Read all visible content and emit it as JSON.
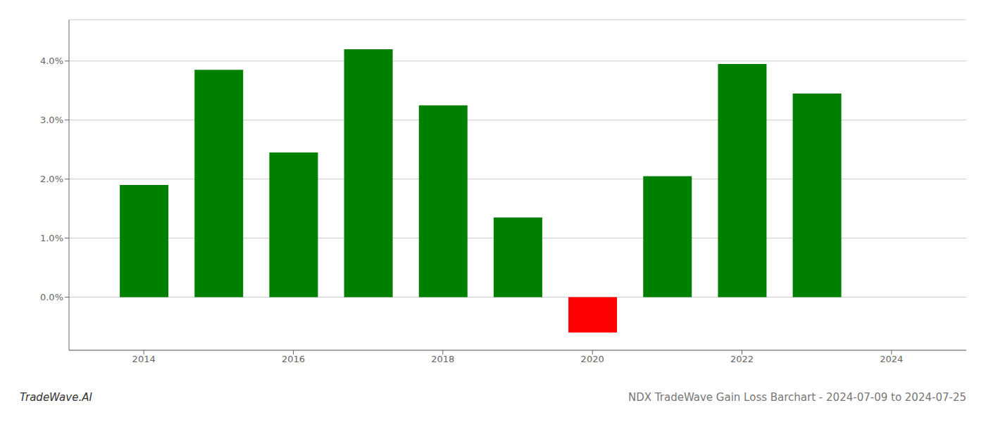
{
  "chart_data": {
    "type": "bar",
    "title": "NDX TradeWave Gain Loss Barchart - 2024-07-09 to 2024-07-25",
    "annotations": [
      "TradeWave.AI"
    ],
    "x": [
      2014,
      2015,
      2016,
      2017,
      2018,
      2019,
      2020,
      2021,
      2022,
      2023
    ],
    "values": [
      0.019,
      0.0385,
      0.0245,
      0.042,
      0.0325,
      0.0135,
      -0.006,
      0.0205,
      0.0395,
      0.0345
    ],
    "colors": [
      "#008000",
      "#008000",
      "#008000",
      "#008000",
      "#008000",
      "#008000",
      "#ff0000",
      "#008000",
      "#008000",
      "#008000"
    ],
    "xlim": [
      2013,
      2025
    ],
    "xticks": [
      2014,
      2016,
      2018,
      2020,
      2022,
      2024
    ],
    "ylim": [
      -0.009,
      0.047
    ],
    "yticks": [
      {
        "value": 0,
        "label": "0.0%"
      },
      {
        "value": 0.01,
        "label": "1.0%"
      },
      {
        "value": 0.02,
        "label": "2.0%"
      },
      {
        "value": 0.03,
        "label": "3.0%"
      },
      {
        "value": 0.04,
        "label": "4.0%"
      }
    ],
    "grid": true
  }
}
